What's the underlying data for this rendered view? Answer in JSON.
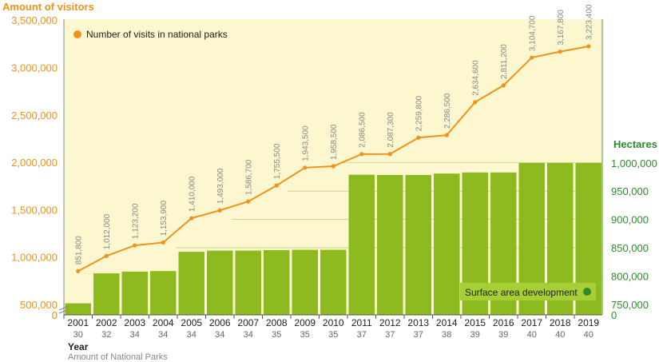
{
  "chart_data": {
    "type": "bar+line",
    "left_axis_title": "Amount of visitors",
    "right_axis_title": "Hectares",
    "x_title": "Year",
    "x_subtitle": "Amount of National Parks",
    "left_ticks": [
      "0",
      "500,000",
      "1,000,000",
      "1,500,000",
      "2,000,000",
      "2,500,000",
      "3,000,000",
      "3,500,000"
    ],
    "right_ticks": [
      "0",
      "750,000",
      "800,000",
      "850,000",
      "900,000",
      "950,000",
      "1,000,000"
    ],
    "years": [
      "2001",
      "2002",
      "2003",
      "2004",
      "2005",
      "2006",
      "2007",
      "2008",
      "2009",
      "2010",
      "2011",
      "2012",
      "2013",
      "2014",
      "2015",
      "2016",
      "2017",
      "2018",
      "2019"
    ],
    "park_counts": [
      "30",
      "32",
      "34",
      "34",
      "34",
      "34",
      "34",
      "35",
      "35",
      "35",
      "37",
      "37",
      "37",
      "38",
      "39",
      "39",
      "40",
      "40",
      "40"
    ],
    "visits": {
      "name": "Number of visits in national parks",
      "values": [
        851800,
        1012000,
        1123200,
        1153900,
        1410000,
        1493000,
        1586700,
        1755500,
        1943500,
        1958500,
        2086500,
        2087300,
        2259800,
        2286500,
        2634600,
        2811200,
        3104700,
        3167800,
        3223400
      ],
      "labels": [
        "851,800",
        "1,012,000",
        "1,123,200",
        "1,153,900",
        "1,410,000",
        "1,493,000",
        "1,586,700",
        "1,755,500",
        "1,943,500",
        "1,958,500",
        "2,086,500",
        "2,087,300",
        "2,259,800",
        "2,286,500",
        "2,634,600",
        "2,811,200",
        "3,104,700",
        "3,167,800",
        "3,223,400"
      ]
    },
    "surface": {
      "name": "Surface area development",
      "values": [
        752000,
        805000,
        808000,
        809000,
        843000,
        845000,
        845000,
        846000,
        846500,
        846500,
        979000,
        978500,
        978500,
        981000,
        983000,
        983000,
        1000000,
        1000000,
        1000000
      ]
    },
    "colors": {
      "bar": "#8dbb1f",
      "line": "#f0921c",
      "axis_left": "#f0921c",
      "axis_right": "#2e8b2e",
      "plot_bg": "#fcf7cf",
      "legend_bar_dot": "#2e8b2e"
    }
  }
}
